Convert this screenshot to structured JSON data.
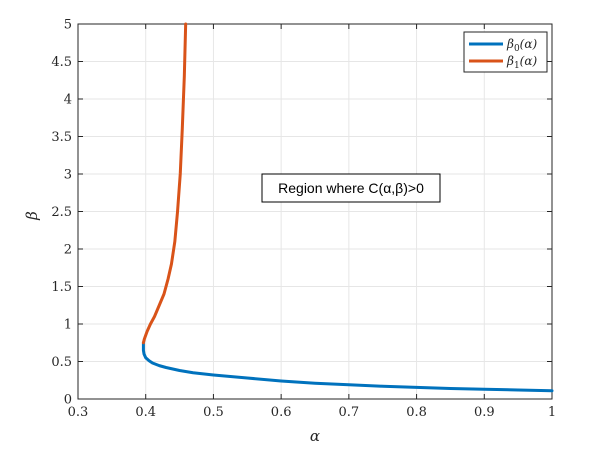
{
  "chart_data": {
    "type": "line",
    "title": "",
    "xlabel": "α",
    "ylabel": "β",
    "xlim": [
      0.3,
      1
    ],
    "ylim": [
      0,
      5
    ],
    "xticks": [
      0.3,
      0.4,
      0.5,
      0.6,
      0.7,
      0.8,
      0.9,
      1
    ],
    "xtick_labels": [
      "0.3",
      "0.4",
      "0.5",
      "0.6",
      "0.7",
      "0.8",
      "0.9",
      "1"
    ],
    "yticks": [
      0,
      0.5,
      1,
      1.5,
      2,
      2.5,
      3,
      3.5,
      4,
      4.5,
      5
    ],
    "ytick_labels": [
      "0",
      "0.5",
      "1",
      "1.5",
      "2",
      "2.5",
      "3",
      "3.5",
      "4",
      "4.5",
      "5"
    ],
    "grid": true,
    "legend_position": "top-right",
    "annotation": "Region where C(α,β)>0",
    "series": [
      {
        "name": "β0(α)",
        "legend_base": "β",
        "legend_sub": "0",
        "legend_tail": "(α)",
        "color": "#0072BD",
        "x": [
          0.3966,
          0.3966,
          0.3975,
          0.4,
          0.405,
          0.41,
          0.42,
          0.43,
          0.45,
          0.47,
          0.5,
          0.55,
          0.6,
          0.65,
          0.7,
          0.75,
          0.8,
          0.85,
          0.9,
          0.95,
          1.0
        ],
        "y": [
          0.75,
          0.65,
          0.6,
          0.55,
          0.51,
          0.48,
          0.445,
          0.42,
          0.38,
          0.35,
          0.32,
          0.28,
          0.24,
          0.21,
          0.19,
          0.17,
          0.155,
          0.14,
          0.13,
          0.12,
          0.11
        ]
      },
      {
        "name": "β1(α)",
        "legend_base": "β",
        "legend_sub": "1",
        "legend_tail": "(α)",
        "color": "#D95319",
        "x": [
          0.3966,
          0.398,
          0.402,
          0.407,
          0.413,
          0.42,
          0.427,
          0.433,
          0.438,
          0.443,
          0.447,
          0.451,
          0.454,
          0.457,
          0.459
        ],
        "y": [
          0.75,
          0.8,
          0.9,
          1.0,
          1.1,
          1.25,
          1.4,
          1.6,
          1.8,
          2.1,
          2.5,
          3.0,
          3.6,
          4.3,
          5.0
        ]
      }
    ]
  }
}
